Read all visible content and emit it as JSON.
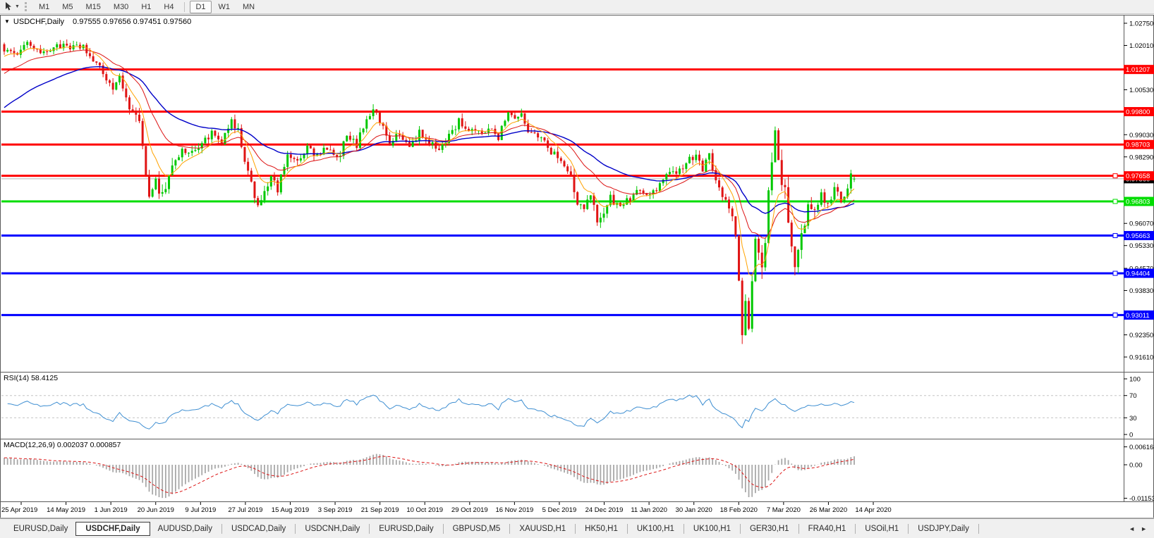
{
  "toolbar": {
    "cursor_icon": "chart-cursor-icon",
    "dropdown_glyph": "▼",
    "timeframes": [
      "M1",
      "M5",
      "M15",
      "M30",
      "H1",
      "H4",
      "D1",
      "W1",
      "MN"
    ],
    "active_timeframe": "D1",
    "separator_before": "D1"
  },
  "chart_header": {
    "collapse_icon": "▼",
    "symbol": "USDCHF,Daily",
    "ohlc": "0.97555 0.97656 0.97451 0.97560"
  },
  "price_axis": {
    "ticks": [
      1.0275,
      1.0201,
      1.0053,
      0.9903,
      0.9829,
      0.9607,
      0.9533,
      0.9457,
      0.9383,
      0.9235,
      0.9161
    ],
    "boxes": [
      {
        "label": "0.97560",
        "value": 0.9756,
        "bg": "#000000",
        "name": "current-price-label"
      },
      {
        "label": "1.01207",
        "value": 1.01207,
        "bg": "#ff0000",
        "name": "resistance-price-label"
      },
      {
        "label": "0.99800",
        "value": 0.998,
        "bg": "#ff0000",
        "name": "resistance-price-label"
      },
      {
        "label": "0.98703",
        "value": 0.98703,
        "bg": "#ff0000",
        "name": "resistance-price-label"
      },
      {
        "label": "0.97658",
        "value": 0.97658,
        "bg": "#ff0000",
        "name": "resistance-price-label"
      },
      {
        "label": "0.96803",
        "value": 0.96803,
        "bg": "#00dd00",
        "name": "support-price-label"
      },
      {
        "label": "0.95663",
        "value": 0.95663,
        "bg": "#0000ff",
        "name": "support-price-label"
      },
      {
        "label": "0.94404",
        "value": 0.94404,
        "bg": "#0000ff",
        "name": "support-price-label"
      },
      {
        "label": "0.93011",
        "value": 0.93011,
        "bg": "#0000ff",
        "name": "support-price-label"
      }
    ]
  },
  "rsi_panel": {
    "label": "RSI(14) 58.4125",
    "ticks": [
      100,
      70,
      30,
      0
    ],
    "levels": [
      70,
      30
    ]
  },
  "macd_panel": {
    "label": "MACD(12,26,9) 0.002037 0.000857",
    "ticks": [
      {
        "label": "0.006167",
        "value": 0.006167
      },
      {
        "label": "0.00",
        "value": 0
      },
      {
        "label": "-0.011533",
        "value": -0.011533
      }
    ]
  },
  "date_axis": {
    "labels": [
      "25 Apr 2019",
      "14 May 2019",
      "1 Jun 2019",
      "20 Jun 2019",
      "9 Jul 2019",
      "27 Jul 2019",
      "15 Aug 2019",
      "3 Sep 2019",
      "21 Sep 2019",
      "10 Oct 2019",
      "29 Oct 2019",
      "16 Nov 2019",
      "5 Dec 2019",
      "24 Dec 2019",
      "11 Jan 2020",
      "30 Jan 2020",
      "18 Feb 2020",
      "7 Mar 2020",
      "26 Mar 2020",
      "14 Apr 2020"
    ]
  },
  "tabs": {
    "items": [
      {
        "label": "EURUSD,Daily",
        "active": false
      },
      {
        "label": "USDCHF,Daily",
        "active": true
      },
      {
        "label": "AUDUSD,Daily",
        "active": false
      },
      {
        "label": "USDCAD,Daily",
        "active": false
      },
      {
        "label": "USDCNH,Daily",
        "active": false
      },
      {
        "label": "EURUSD,Daily",
        "active": false
      },
      {
        "label": "GBPUSD,M5",
        "active": false
      },
      {
        "label": "XAUUSD,H1",
        "active": false
      },
      {
        "label": "HK50,H1",
        "active": false
      },
      {
        "label": "UK100,H1",
        "active": false
      },
      {
        "label": "UK100,H1",
        "active": false
      },
      {
        "label": "GER30,H1",
        "active": false
      },
      {
        "label": "FRA40,H1",
        "active": false
      },
      {
        "label": "USOil,H1",
        "active": false
      },
      {
        "label": "USDJPY,Daily",
        "active": false
      }
    ],
    "nav_left": "◄",
    "nav_right": "►"
  },
  "colors": {
    "candle_up": "#00c800",
    "candle_down": "#e01414",
    "ma_fast": "#ffa200",
    "ma_medium": "#dc1414",
    "ma_slow": "#0000c8",
    "rsi_line": "#3f8fd2",
    "rsi_level": "#c4c4c4",
    "macd_hist": "#a8a8a8",
    "macd_signal": "#dc1414",
    "red": "#ff0000",
    "green": "#00dd00",
    "blue": "#0000ff",
    "gray": "#b4b4b4"
  },
  "chart_data": {
    "type": "candlestick+indicators",
    "symbol": "USDCHF",
    "timeframe": "Daily",
    "visible_range": {
      "start": "25 Apr 2019",
      "end": "21 Apr 2020",
      "bars": 259
    },
    "price_axis_range": [
      0.9161,
      1.0275
    ],
    "last_bar_ohlc": {
      "open": 0.97555,
      "high": 0.97656,
      "low": 0.97451,
      "close": 0.9756
    },
    "horizontal_lines": [
      {
        "price": 1.01207,
        "color": "red",
        "width": 3,
        "handle": false
      },
      {
        "price": 0.998,
        "color": "red",
        "width": 3,
        "handle": false
      },
      {
        "price": 0.98703,
        "color": "red",
        "width": 3,
        "handle": false
      },
      {
        "price": 0.97658,
        "color": "red",
        "width": 3,
        "handle": true
      },
      {
        "price": 0.9756,
        "color": "gray",
        "width": 1,
        "handle": false
      },
      {
        "price": 0.96803,
        "color": "green",
        "width": 3,
        "handle": true
      },
      {
        "price": 0.95663,
        "color": "blue",
        "width": 3,
        "handle": true
      },
      {
        "price": 0.94404,
        "color": "blue",
        "width": 3,
        "handle": true
      },
      {
        "price": 0.93011,
        "color": "blue",
        "width": 3,
        "handle": true
      }
    ],
    "close_keypoints": [
      [
        0,
        1.019
      ],
      [
        3,
        1.0165
      ],
      [
        6,
        1.021
      ],
      [
        9,
        1.0198
      ],
      [
        12,
        1.017
      ],
      [
        16,
        1.0205
      ],
      [
        20,
        1.0188
      ],
      [
        24,
        1.02
      ],
      [
        27,
        1.0145
      ],
      [
        30,
        1.011
      ],
      [
        33,
        1.0058
      ],
      [
        35,
        1.0088
      ],
      [
        38,
        1.0
      ],
      [
        41,
        0.993
      ],
      [
        44,
        0.9712
      ],
      [
        46,
        0.9745
      ],
      [
        48,
        0.9702
      ],
      [
        51,
        0.98
      ],
      [
        54,
        0.985
      ],
      [
        57,
        0.984
      ],
      [
        60,
        0.988
      ],
      [
        63,
        0.9905
      ],
      [
        66,
        0.9872
      ],
      [
        69,
        0.9946
      ],
      [
        71,
        0.9918
      ],
      [
        73,
        0.98
      ],
      [
        75,
        0.9745
      ],
      [
        77,
        0.9663
      ],
      [
        79,
        0.972
      ],
      [
        81,
        0.976
      ],
      [
        83,
        0.9715
      ],
      [
        86,
        0.9845
      ],
      [
        89,
        0.9805
      ],
      [
        92,
        0.986
      ],
      [
        95,
        0.983
      ],
      [
        98,
        0.9856
      ],
      [
        101,
        0.982
      ],
      [
        104,
        0.9895
      ],
      [
        107,
        0.987
      ],
      [
        110,
        0.996
      ],
      [
        112,
        0.9992
      ],
      [
        114,
        0.995
      ],
      [
        117,
        0.9878
      ],
      [
        120,
        0.9902
      ],
      [
        123,
        0.9862
      ],
      [
        126,
        0.991
      ],
      [
        129,
        0.987
      ],
      [
        132,
        0.9856
      ],
      [
        135,
        0.99
      ],
      [
        138,
        0.9948
      ],
      [
        141,
        0.992
      ],
      [
        144,
        0.9905
      ],
      [
        147,
        0.9928
      ],
      [
        150,
        0.9898
      ],
      [
        153,
        0.9985
      ],
      [
        155,
        0.9952
      ],
      [
        157,
        0.9968
      ],
      [
        160,
        0.9898
      ],
      [
        163,
        0.9905
      ],
      [
        166,
        0.985
      ],
      [
        169,
        0.9812
      ],
      [
        172,
        0.976
      ],
      [
        174,
        0.968
      ],
      [
        176,
        0.9648
      ],
      [
        178,
        0.9698
      ],
      [
        180,
        0.9618
      ],
      [
        182,
        0.9648
      ],
      [
        184,
        0.9705
      ],
      [
        186,
        0.9662
      ],
      [
        189,
        0.968
      ],
      [
        192,
        0.9715
      ],
      [
        195,
        0.97
      ],
      [
        198,
        0.9725
      ],
      [
        201,
        0.976
      ],
      [
        204,
        0.9785
      ],
      [
        207,
        0.981
      ],
      [
        210,
        0.984
      ],
      [
        212,
        0.9792
      ],
      [
        214,
        0.983
      ],
      [
        216,
        0.9762
      ],
      [
        218,
        0.97
      ],
      [
        220,
        0.9655
      ],
      [
        222,
        0.958
      ],
      [
        223,
        0.941
      ],
      [
        224,
        0.9215
      ],
      [
        225,
        0.932
      ],
      [
        226,
        0.927
      ],
      [
        227,
        0.942
      ],
      [
        228,
        0.956
      ],
      [
        229,
        0.9505
      ],
      [
        230,
        0.946
      ],
      [
        231,
        0.956
      ],
      [
        232,
        0.97
      ],
      [
        233,
        0.981
      ],
      [
        234,
        0.989
      ],
      [
        235,
        0.9815
      ],
      [
        236,
        0.976
      ],
      [
        237,
        0.97
      ],
      [
        238,
        0.962
      ],
      [
        239,
        0.9515
      ],
      [
        240,
        0.9435
      ],
      [
        241,
        0.949
      ],
      [
        242,
        0.9555
      ],
      [
        243,
        0.962
      ],
      [
        244,
        0.968
      ],
      [
        245,
        0.9645
      ],
      [
        246,
        0.964
      ],
      [
        248,
        0.97
      ],
      [
        250,
        0.9662
      ],
      [
        252,
        0.9728
      ],
      [
        254,
        0.9682
      ],
      [
        256,
        0.9732
      ],
      [
        257,
        0.9765
      ],
      [
        258,
        0.9756
      ]
    ],
    "moving_averages": [
      {
        "name": "fast",
        "period": 8,
        "color_key": "ma_fast"
      },
      {
        "name": "medium",
        "period": 21,
        "color_key": "ma_medium"
      },
      {
        "name": "slow",
        "period": 45,
        "color_key": "ma_slow"
      }
    ],
    "rsi": {
      "period": 14,
      "current": 58.4125,
      "range": [
        0,
        100
      ],
      "levels": [
        70,
        30
      ]
    },
    "macd": {
      "fast": 12,
      "slow": 26,
      "signal": 9,
      "current_macd": 0.002037,
      "current_signal": 0.000857,
      "range": [
        -0.011533,
        0.006167
      ]
    }
  }
}
